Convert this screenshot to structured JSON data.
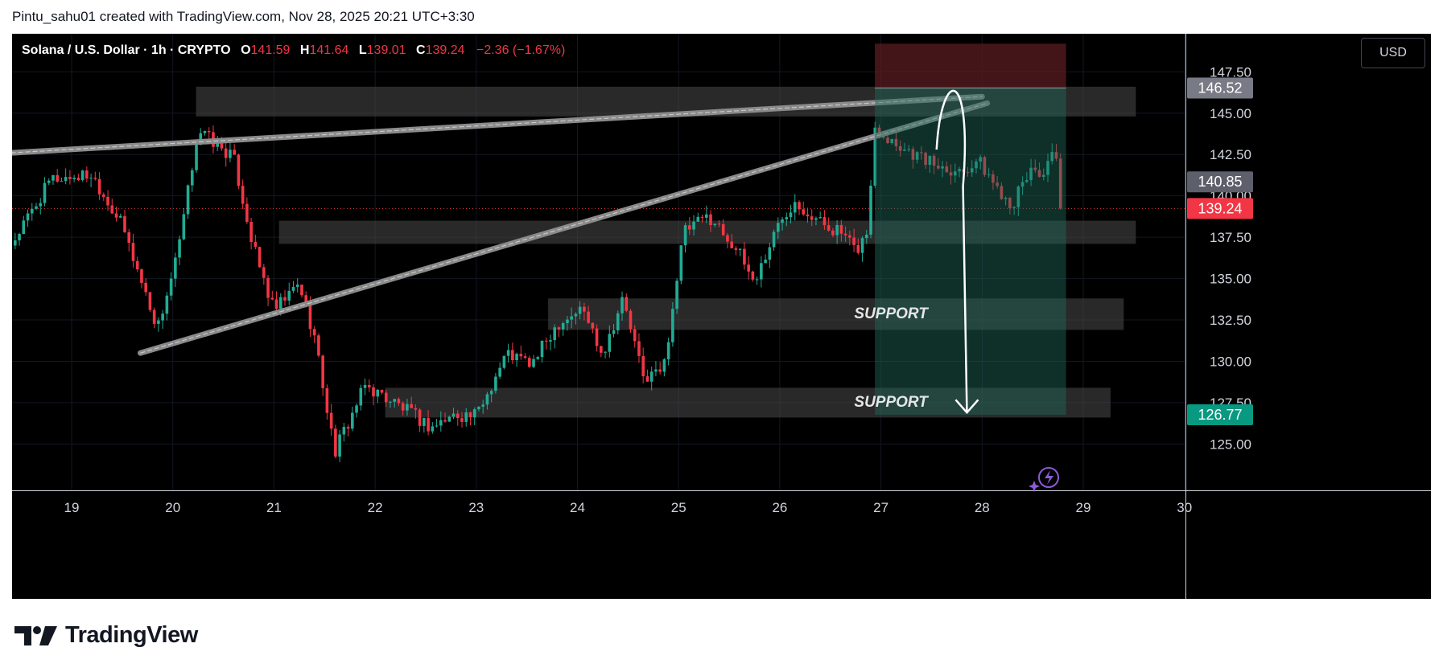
{
  "caption": "Pintu_sahu01 created with TradingView.com, Nov 28, 2025 20:21 UTC+3:30",
  "brand": {
    "name": "TradingView",
    "logo_icon": "tradingview-logo-icon"
  },
  "toolbar": {
    "currency": "USD"
  },
  "legend": {
    "symbol": "Solana / U.S. Dollar · 1h · CRYPTO",
    "open_label": "O",
    "open": "141.59",
    "high_label": "H",
    "high": "141.64",
    "low_label": "L",
    "low": "139.01",
    "close_label": "C",
    "close": "139.24",
    "change": "−2.36 (−1.67%)"
  },
  "colors": {
    "up": "#22ab94",
    "down": "#f23645",
    "background": "#000000",
    "zone": "#4a4a4a",
    "target_box": "#1e6b5c",
    "stop_box": "#5a1c22"
  },
  "chart_data": {
    "type": "candlestick",
    "timeframe": "1h",
    "x_axis": {
      "ticks": [
        "19",
        "20",
        "21",
        "22",
        "23",
        "24",
        "25",
        "26",
        "27",
        "28",
        "29",
        "30"
      ]
    },
    "y_axis": {
      "range": [
        122.2,
        149.8
      ],
      "ticks": [
        "147.50",
        "145.00",
        "142.50",
        "140.00",
        "137.50",
        "135.00",
        "132.50",
        "130.00",
        "127.50",
        "125.00"
      ]
    },
    "price_labels": [
      {
        "value": 146.52,
        "text": "146.52",
        "color": "#787b86"
      },
      {
        "value": 140.85,
        "text": "140.85",
        "color": "#5d606b"
      },
      {
        "value": 139.24,
        "text": "139.24",
        "color": "#f23645"
      },
      {
        "value": 126.77,
        "text": "126.77",
        "color": "#089981"
      }
    ],
    "current_price": 139.24,
    "price_path": [
      [
        18.4,
        137.0
      ],
      [
        18.8,
        141.0
      ],
      [
        19.2,
        141.3
      ],
      [
        19.5,
        138.2
      ],
      [
        19.85,
        132.0
      ],
      [
        20.05,
        136.5
      ],
      [
        20.25,
        144.0
      ],
      [
        20.6,
        142.3
      ],
      [
        20.8,
        136.8
      ],
      [
        21.0,
        133.0
      ],
      [
        21.25,
        134.7
      ],
      [
        21.4,
        131.5
      ],
      [
        21.6,
        124.5
      ],
      [
        21.9,
        128.5
      ],
      [
        22.2,
        127.5
      ],
      [
        22.55,
        126.0
      ],
      [
        22.8,
        126.8
      ],
      [
        23.0,
        126.7
      ],
      [
        23.3,
        130.5
      ],
      [
        23.55,
        129.8
      ],
      [
        23.8,
        132.3
      ],
      [
        24.05,
        133.2
      ],
      [
        24.25,
        130.5
      ],
      [
        24.45,
        133.8
      ],
      [
        24.65,
        129.0
      ],
      [
        24.85,
        129.5
      ],
      [
        25.05,
        137.8
      ],
      [
        25.3,
        138.8
      ],
      [
        25.55,
        137.0
      ],
      [
        25.75,
        134.8
      ],
      [
        26.0,
        138.5
      ],
      [
        26.15,
        139.8
      ],
      [
        26.35,
        138.6
      ],
      [
        26.6,
        137.8
      ],
      [
        26.75,
        136.6
      ],
      [
        26.88,
        138.0
      ],
      [
        26.93,
        144.2
      ],
      [
        27.2,
        143.0
      ],
      [
        27.5,
        142.0
      ],
      [
        27.8,
        141.5
      ],
      [
        27.95,
        142.2
      ],
      [
        28.15,
        140.5
      ],
      [
        28.3,
        139.5
      ],
      [
        28.5,
        141.8
      ],
      [
        28.6,
        141.2
      ],
      [
        28.72,
        142.6
      ],
      [
        28.8,
        139.24
      ]
    ],
    "support_zones": [
      {
        "x": [
          21.05,
          29.52
        ],
        "y": [
          138.5,
          137.1
        ]
      },
      {
        "x": [
          23.71,
          29.4
        ],
        "y": [
          133.8,
          131.9
        ]
      },
      {
        "x": [
          22.1,
          29.27
        ],
        "y": [
          128.4,
          126.6
        ]
      }
    ],
    "resistance_zone": {
      "x": [
        20.23,
        29.52
      ],
      "y": [
        146.6,
        144.8
      ]
    },
    "trend_lines": [
      {
        "from": [
          18.4,
          142.6
        ],
        "to": [
          28.0,
          146.0
        ]
      },
      {
        "from": [
          19.68,
          130.5
        ],
        "to": [
          28.05,
          145.6
        ]
      }
    ],
    "position": {
      "type": "short",
      "entry": 146.52,
      "stop": 149.2,
      "target": 126.77,
      "x": [
        26.94,
        28.83
      ]
    },
    "annotations": [
      {
        "text": "SUPPORT",
        "x": 27.1,
        "y": 132.6
      },
      {
        "text": "SUPPORT",
        "x": 27.1,
        "y": 127.25
      }
    ],
    "projection_arrow": {
      "start": [
        27.55,
        142.8
      ],
      "peak": [
        27.7,
        146.4
      ],
      "end": [
        27.85,
        126.9
      ]
    }
  }
}
